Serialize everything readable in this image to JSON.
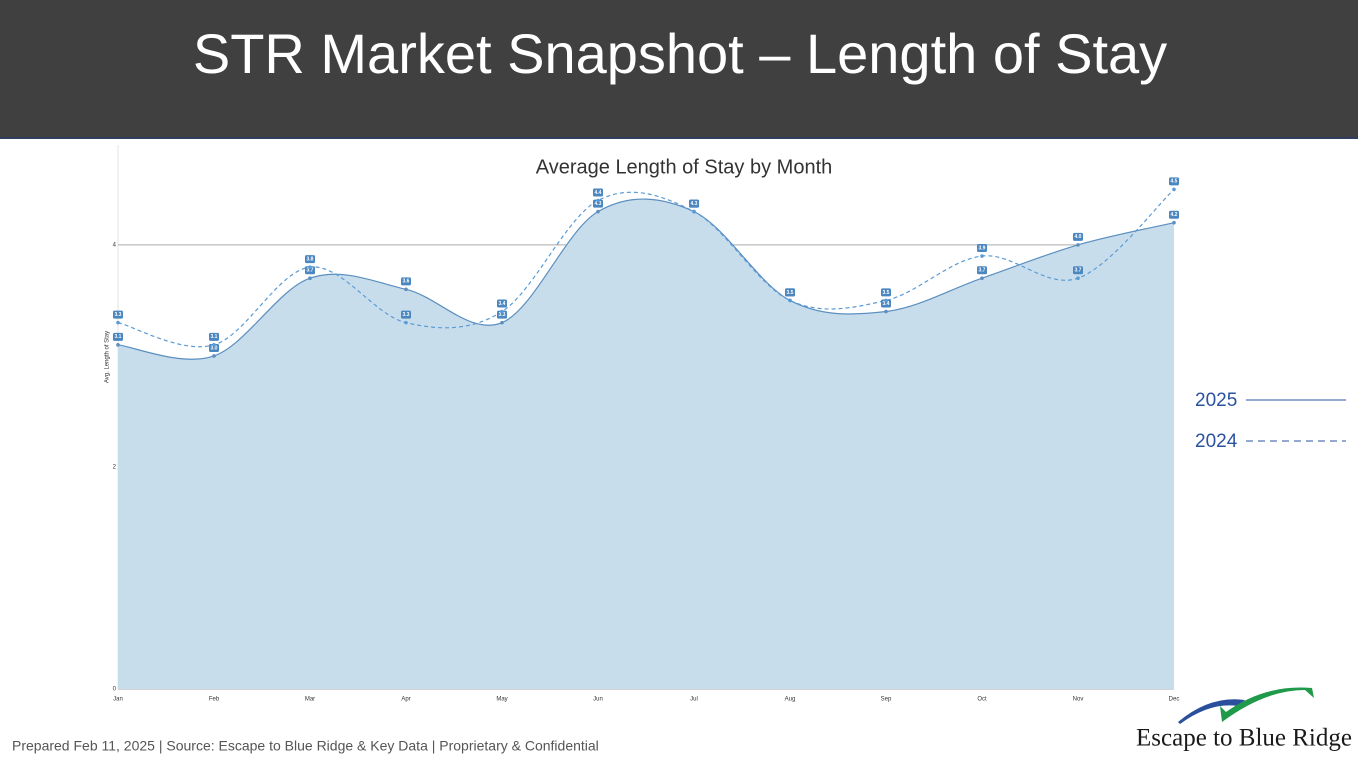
{
  "header": {
    "title": "STR Market Snapshot – Length of Stay"
  },
  "chart_data": {
    "type": "line",
    "title": "Average Length of Stay by Month",
    "y_label": "Avg. Length of Stay",
    "categories": [
      "Jan",
      "Feb",
      "Mar",
      "Apr",
      "May",
      "Jun",
      "Jul",
      "Aug",
      "Sep",
      "Oct",
      "Nov",
      "Dec"
    ],
    "series": [
      {
        "name": "2025",
        "color": "#5b8fbf",
        "fill": "#c8ddec",
        "area": true,
        "values": [
          3.1,
          3.0,
          3.7,
          3.6,
          3.3,
          4.3,
          4.3,
          3.5,
          3.4,
          3.7,
          4.0,
          4.2
        ],
        "value_labels": [
          "3.1",
          "3.0",
          "3.7",
          "3.6",
          "3.3",
          "4.3",
          "4.3",
          "3.5",
          "3.4",
          "3.7",
          "4.0",
          "4.2"
        ]
      },
      {
        "name": "2024",
        "color": "#5b9bd5",
        "dashed": true,
        "values": [
          3.3,
          3.1,
          3.8,
          3.3,
          3.4,
          4.4,
          4.3,
          3.5,
          3.5,
          3.9,
          3.7,
          4.5
        ],
        "value_labels": [
          "3.3",
          "3.1",
          "3.8",
          "3.3",
          "3.4",
          "4.4",
          "4.3",
          "3.5",
          "3.5",
          "3.9",
          "3.7",
          "4.5"
        ]
      }
    ],
    "ylim": [
      0,
      4.9
    ],
    "yticks": [
      0,
      2,
      4
    ],
    "grid": true,
    "legend": "right"
  },
  "footer": {
    "note": "Prepared Feb 11, 2025 | Source:  Escape to Blue Ridge & Key Data | Proprietary & Confidential",
    "logo": "Escape to Blue Ridge"
  }
}
